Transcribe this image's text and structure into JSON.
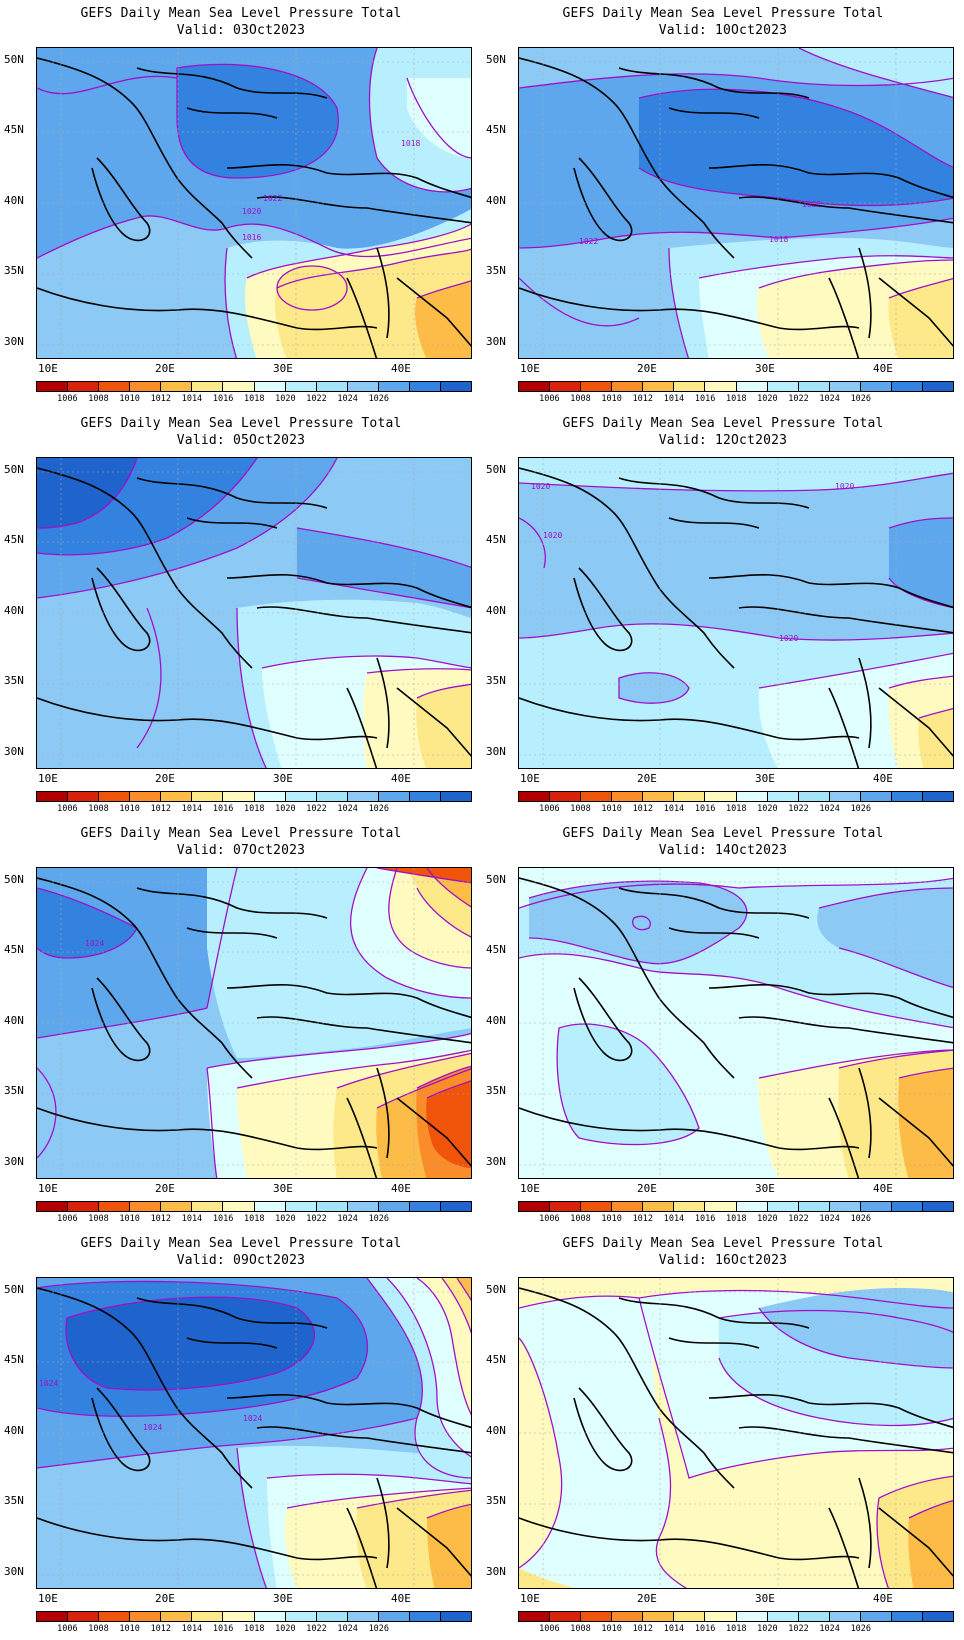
{
  "figure": {
    "colorbar": {
      "colors": [
        "#b20000",
        "#d8230a",
        "#f0530a",
        "#fb8c2a",
        "#fdbb48",
        "#fde88a",
        "#fffbc0",
        "#e0ffff",
        "#b8efff",
        "#a4e4f8",
        "#8cc9f5",
        "#5ea7ec",
        "#3482e0",
        "#1f63cc"
      ],
      "labels": [
        "1006",
        "1008",
        "1010",
        "1012",
        "1014",
        "1016",
        "1018",
        "1020",
        "1022",
        "1024",
        "1026"
      ]
    },
    "axes": {
      "lat_labels": [
        "50N",
        "45N",
        "40N",
        "35N",
        "30N"
      ],
      "lon_labels": [
        "10E",
        "20E",
        "30E",
        "40E"
      ],
      "lat_range": [
        29,
        51
      ],
      "lon_range": [
        8,
        45
      ]
    },
    "panels": [
      {
        "title": "GEFS Daily Mean Sea Level Pressure Total",
        "valid": "Valid: 03Oct2023",
        "contour_labels": [
          "1018",
          "1022",
          "1020",
          "1016"
        ]
      },
      {
        "title": "GEFS Daily Mean Sea Level Pressure Total",
        "valid": "Valid: 10Oct2023",
        "contour_labels": [
          "1022",
          "1022",
          "1018"
        ]
      },
      {
        "title": "GEFS Daily Mean Sea Level Pressure Total",
        "valid": "Valid: 05Oct2023",
        "contour_labels": []
      },
      {
        "title": "GEFS Daily Mean Sea Level Pressure Total",
        "valid": "Valid: 12Oct2023",
        "contour_labels": [
          "1020",
          "1020",
          "1020",
          "1020"
        ]
      },
      {
        "title": "GEFS Daily Mean Sea Level Pressure Total",
        "valid": "Valid: 07Oct2023",
        "contour_labels": [
          "1024"
        ]
      },
      {
        "title": "GEFS Daily Mean Sea Level Pressure Total",
        "valid": "Valid: 14Oct2023",
        "contour_labels": []
      },
      {
        "title": "GEFS Daily Mean Sea Level Pressure Total",
        "valid": "Valid: 09Oct2023",
        "contour_labels": [
          "1024",
          "1024",
          "1024"
        ]
      },
      {
        "title": "GEFS Daily Mean Sea Level Pressure Total",
        "valid": "Valid: 16Oct2023",
        "contour_labels": []
      }
    ]
  }
}
